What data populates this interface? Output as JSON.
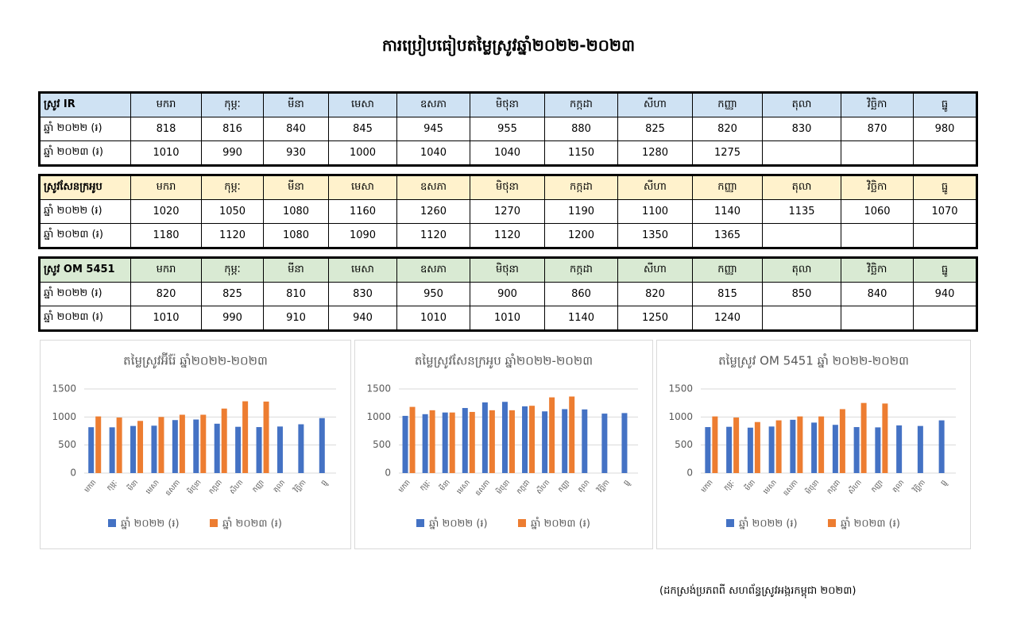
{
  "title": "ការប្រៀបធៀបតម្លៃស្រូវឆ្នាំ២០២២-២០២៣",
  "tables": [
    {
      "header": "ស្រូវ IR",
      "months": [
        "មករា",
        "កុម្ភៈ",
        "មីនា",
        "មេសា",
        "ឧសភា",
        "មិថុនា",
        "កក្កដា",
        "សីហា",
        "កញ្ញា",
        "តុលា",
        "វិច្ឆិកា",
        "ធ្នូ"
      ],
      "rows": [
        {
          "label": "ឆ្នាំ ២០២២ (៛)",
          "values": [
            818,
            816,
            840,
            845,
            945,
            955,
            880,
            825,
            820,
            830,
            870,
            980
          ]
        },
        {
          "label": "ឆ្នាំ ២០២៣ (៛)",
          "values": [
            1010,
            990,
            930,
            1000,
            1040,
            1040,
            1150,
            1280,
            1275,
            null,
            null,
            null
          ]
        }
      ]
    },
    {
      "header": "ស្រូវសែនក្រអូប",
      "months": [
        "មករា",
        "កុម្ភៈ",
        "មីនា",
        "មេសា",
        "ឧសភា",
        "មិថុនា",
        "កក្កដា",
        "សីហា",
        "កញ្ញា",
        "តុលា",
        "វិច្ឆិកា",
        "ធ្នូ"
      ],
      "rows": [
        {
          "label": "ឆ្នាំ ២០២២ (៛)",
          "values": [
            1020,
            1050,
            1080,
            1160,
            1260,
            1270,
            1190,
            1100,
            1140,
            1135,
            1060,
            1070
          ]
        },
        {
          "label": "ឆ្នាំ ២០២៣ (៛)",
          "values": [
            1180,
            1120,
            1080,
            1090,
            1120,
            1120,
            1200,
            1350,
            1365,
            null,
            null,
            null
          ]
        }
      ]
    },
    {
      "header": "ស្រូវ OM 5451",
      "months": [
        "មករា",
        "កុម្ភៈ",
        "មីនា",
        "មេសា",
        "ឧសភា",
        "មិថុនា",
        "កក្កដា",
        "សីហា",
        "កញ្ញា",
        "តុលា",
        "វិច្ឆិកា",
        "ធ្នូ"
      ],
      "rows": [
        {
          "label": "ឆ្នាំ ២០២២ (៛)",
          "values": [
            820,
            825,
            810,
            830,
            950,
            900,
            860,
            820,
            815,
            850,
            840,
            940
          ]
        },
        {
          "label": "ឆ្នាំ ២០២៣ (៛)",
          "values": [
            1010,
            990,
            910,
            940,
            1010,
            1010,
            1140,
            1250,
            1240,
            null,
            null,
            null
          ]
        }
      ]
    }
  ],
  "chart_data": [
    {
      "type": "bar",
      "title": "តម្លៃស្រូវអ៊ីរ៉ែ ឆ្នាំ២០២២-២០២៣",
      "categories": [
        "មករា",
        "កុម្ភៈ",
        "មីនា",
        "មេសា",
        "ឧសភា",
        "មិថុនា",
        "កក្កដា",
        "សីហា",
        "កញ្ញា",
        "តុលា",
        "វិច្ឆិកា",
        "ធ្នូ"
      ],
      "series": [
        {
          "name": "ឆ្នាំ ២០២២ (៛)",
          "color": "#4472c4",
          "values": [
            818,
            816,
            840,
            845,
            945,
            955,
            880,
            825,
            820,
            830,
            870,
            980
          ]
        },
        {
          "name": "ឆ្នាំ ២០២៣ (៛)",
          "color": "#ed7d31",
          "values": [
            1010,
            990,
            930,
            1000,
            1040,
            1040,
            1150,
            1280,
            1275,
            null,
            null,
            null
          ]
        }
      ],
      "ylim": [
        0,
        1500
      ],
      "yticks": [
        0,
        500,
        1000,
        1500
      ]
    },
    {
      "type": "bar",
      "title": "តម្លៃស្រូវសែនក្រអូប ឆ្នាំ២០២២-២០២៣",
      "categories": [
        "មករា",
        "កុម្ភៈ",
        "មីនា",
        "មេសា",
        "ឧសភា",
        "មិថុនា",
        "កក្កដា",
        "សីហា",
        "កញ្ញា",
        "តុលា",
        "វិច្ឆិកា",
        "ធ្នូ"
      ],
      "series": [
        {
          "name": "ឆ្នាំ ២០២២ (៛)",
          "color": "#4472c4",
          "values": [
            1020,
            1050,
            1080,
            1160,
            1260,
            1270,
            1190,
            1100,
            1140,
            1135,
            1060,
            1070
          ]
        },
        {
          "name": "ឆ្នាំ ២០២៣ (៛)",
          "color": "#ed7d31",
          "values": [
            1180,
            1120,
            1080,
            1090,
            1120,
            1120,
            1200,
            1350,
            1365,
            null,
            null,
            null
          ]
        }
      ],
      "ylim": [
        0,
        1500
      ],
      "yticks": [
        0,
        500,
        1000,
        1500
      ]
    },
    {
      "type": "bar",
      "title": "តម្លៃស្រូវ OM 5451 ឆ្នាំ ២០២២-២០២៣",
      "categories": [
        "មករា",
        "កុម្ភៈ",
        "មីនា",
        "មេសា",
        "ឧសភា",
        "មិថុនា",
        "កក្កដា",
        "សីហា",
        "កញ្ញា",
        "តុលា",
        "វិច្ឆិកា",
        "ធ្នូ"
      ],
      "series": [
        {
          "name": "ឆ្នាំ ២០២២ (៛)",
          "color": "#4472c4",
          "values": [
            820,
            825,
            810,
            830,
            950,
            900,
            860,
            820,
            815,
            850,
            840,
            940
          ]
        },
        {
          "name": "ឆ្នាំ ២០២៣ (៛)",
          "color": "#ed7d31",
          "values": [
            1010,
            990,
            910,
            940,
            1010,
            1010,
            1140,
            1250,
            1240,
            null,
            null,
            null
          ]
        }
      ],
      "ylim": [
        0,
        1500
      ],
      "yticks": [
        0,
        500,
        1000,
        1500
      ]
    }
  ],
  "source": "(ដកស្រង់ប្រភពពី សហព័ន្ធស្រូវអង្ករកម្ពុជា ២០២៣)"
}
